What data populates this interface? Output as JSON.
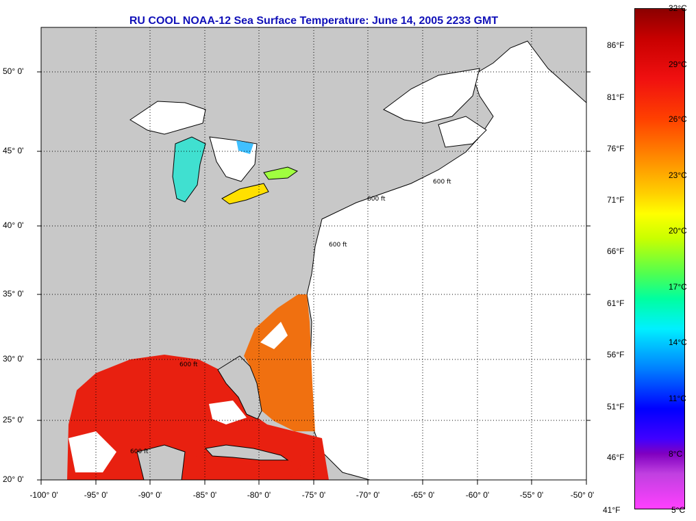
{
  "title": "RU COOL  NOAA-12  Sea Surface Temperature:  June 14, 2005 2233 GMT",
  "map": {
    "lon_range": [
      -100,
      -50
    ],
    "lat_range": [
      20,
      52.5
    ],
    "lat_ticks": [
      "50° 0'",
      "45° 0'",
      "40° 0'",
      "35° 0'",
      "30° 0'",
      "25° 0'",
      "20° 0'"
    ],
    "lon_ticks": [
      "-100° 0'",
      "-95° 0'",
      "-90° 0'",
      "-85° 0'",
      "-80° 0'",
      "-75° 0'",
      "-70° 0'",
      "-65° 0'",
      "-60° 0'",
      "-55° 0'",
      "-50° 0'"
    ],
    "contour_label": "600 ft",
    "colors": {
      "land": "#c8c8c8",
      "no_data": "#ffffff",
      "gulf_water": "#e82010",
      "atlantic_water": "#f07010",
      "gridline": "#000000"
    }
  },
  "colorbar": {
    "celsius": [
      "32°C",
      "29°C",
      "26°C",
      "23°C",
      "20°C",
      "17°C",
      "14°C",
      "11°C",
      "8°C",
      "5°C"
    ],
    "fahrenheit": [
      "86°F",
      "81°F",
      "76°F",
      "71°F",
      "66°F",
      "61°F",
      "56°F",
      "51°F",
      "46°F",
      "41°F"
    ]
  }
}
